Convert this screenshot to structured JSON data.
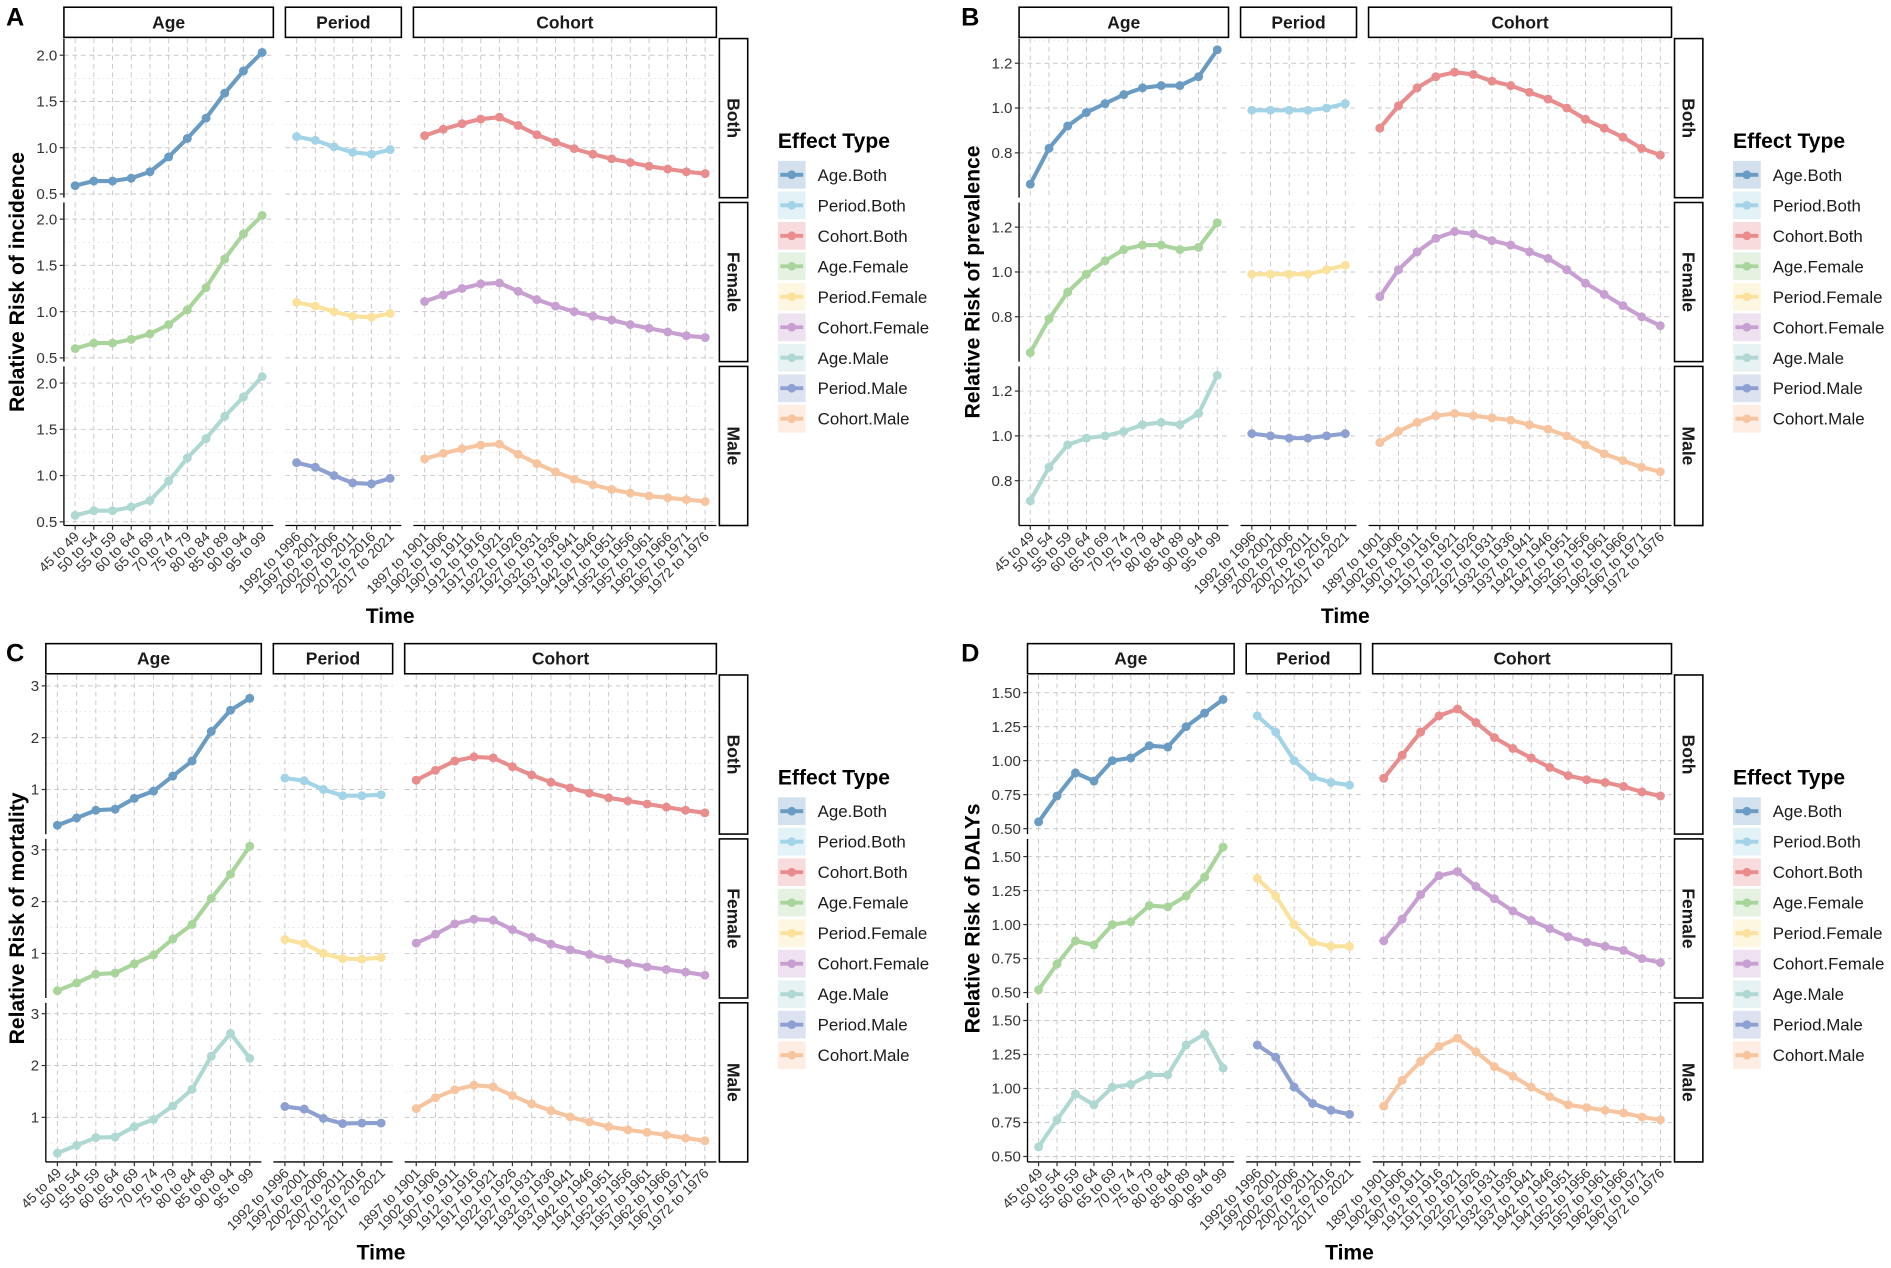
{
  "palette": {
    "Age.Both": "#6a9bc3",
    "Period.Both": "#a3d3e6",
    "Cohort.Both": "#e88c8d",
    "Age.Female": "#a9d59c",
    "Period.Female": "#fae29c",
    "Cohort.Female": "#c79fd1",
    "Age.Male": "#afd8d3",
    "Period.Male": "#8ea0d2",
    "Cohort.Male": "#f7c4a0"
  },
  "chart_data": [
    {
      "panel_label": "A",
      "type": "line",
      "xlabel": "Time",
      "ylabel": "Relative Risk of incidence",
      "columns": [
        "Age",
        "Period",
        "Cohort"
      ],
      "rows": [
        "Both",
        "Female",
        "Male"
      ],
      "legend_title": "Effect Type",
      "ylim": [
        0.46,
        2.18
      ],
      "yticks": [
        0.5,
        1.0,
        1.5,
        2.0
      ],
      "ytick_labels": [
        "0.5",
        "1.0",
        "1.5",
        "2.0"
      ],
      "categories": {
        "Age": [
          "45 to 49",
          "50 to 54",
          "55 to 59",
          "60 to 64",
          "65 to 69",
          "70 to 74",
          "75 to 79",
          "80 to 84",
          "85 to 89",
          "90 to 94",
          "95 to 99"
        ],
        "Period": [
          "1992 to 1996",
          "1997 to 2001",
          "2002 to 2006",
          "2007 to 2011",
          "2012 to 2016",
          "2017 to 2021"
        ],
        "Cohort": [
          "1897 to 1901",
          "1902 to 1906",
          "1907 to 1911",
          "1912 to 1916",
          "1917 to 1921",
          "1922 to 1926",
          "1927 to 1931",
          "1932 to 1936",
          "1937 to 1941",
          "1942 to 1946",
          "1947 to 1951",
          "1952 to 1956",
          "1957 to 1961",
          "1962 to 1966",
          "1967 to 1971",
          "1972 to 1976"
        ]
      },
      "series": [
        {
          "name": "Age.Both",
          "values": [
            0.59,
            0.64,
            0.64,
            0.67,
            0.74,
            0.9,
            1.1,
            1.32,
            1.59,
            1.83,
            2.03
          ]
        },
        {
          "name": "Period.Both",
          "values": [
            1.12,
            1.08,
            1.01,
            0.95,
            0.93,
            0.98
          ]
        },
        {
          "name": "Cohort.Both",
          "values": [
            1.13,
            1.2,
            1.26,
            1.31,
            1.33,
            1.24,
            1.14,
            1.06,
            0.99,
            0.93,
            0.88,
            0.84,
            0.8,
            0.77,
            0.74,
            0.72
          ]
        },
        {
          "name": "Age.Female",
          "values": [
            0.6,
            0.66,
            0.66,
            0.7,
            0.76,
            0.86,
            1.02,
            1.26,
            1.57,
            1.84,
            2.04
          ]
        },
        {
          "name": "Period.Female",
          "values": [
            1.1,
            1.06,
            1.0,
            0.95,
            0.94,
            0.98
          ]
        },
        {
          "name": "Cohort.Female",
          "values": [
            1.11,
            1.18,
            1.25,
            1.3,
            1.31,
            1.22,
            1.13,
            1.06,
            1.0,
            0.95,
            0.91,
            0.86,
            0.82,
            0.78,
            0.74,
            0.72
          ]
        },
        {
          "name": "Age.Male",
          "values": [
            0.57,
            0.62,
            0.62,
            0.66,
            0.73,
            0.94,
            1.19,
            1.4,
            1.64,
            1.85,
            2.07
          ]
        },
        {
          "name": "Period.Male",
          "values": [
            1.14,
            1.09,
            1.0,
            0.92,
            0.91,
            0.97
          ]
        },
        {
          "name": "Cohort.Male",
          "values": [
            1.18,
            1.24,
            1.29,
            1.33,
            1.34,
            1.23,
            1.13,
            1.04,
            0.96,
            0.9,
            0.85,
            0.81,
            0.78,
            0.76,
            0.74,
            0.72
          ]
        }
      ]
    },
    {
      "panel_label": "B",
      "type": "line",
      "xlabel": "Time",
      "ylabel": "Relative Risk of prevalence",
      "columns": [
        "Age",
        "Period",
        "Cohort"
      ],
      "rows": [
        "Both",
        "Female",
        "Male"
      ],
      "legend_title": "Effect Type",
      "ylim": [
        0.6,
        1.31
      ],
      "yticks": [
        0.8,
        1.0,
        1.2
      ],
      "ytick_labels": [
        "0.8",
        "1.0",
        "1.2"
      ],
      "categories": {
        "Age": [
          "45 to 49",
          "50 to 54",
          "55 to 59",
          "60 to 64",
          "65 to 69",
          "70 to 74",
          "75 to 79",
          "80 to 84",
          "85 to 89",
          "90 to 94",
          "95 to 99"
        ],
        "Period": [
          "1992 to 1996",
          "1997 to 2001",
          "2002 to 2006",
          "2007 to 2011",
          "2012 to 2016",
          "2017 to 2021"
        ],
        "Cohort": [
          "1897 to 1901",
          "1902 to 1906",
          "1907 to 1911",
          "1912 to 1916",
          "1917 to 1921",
          "1922 to 1926",
          "1927 to 1931",
          "1932 to 1936",
          "1937 to 1941",
          "1942 to 1946",
          "1947 to 1951",
          "1952 to 1956",
          "1957 to 1961",
          "1962 to 1966",
          "1967 to 1971",
          "1972 to 1976"
        ]
      },
      "series": [
        {
          "name": "Age.Both",
          "values": [
            0.66,
            0.82,
            0.92,
            0.98,
            1.02,
            1.06,
            1.09,
            1.1,
            1.1,
            1.14,
            1.26
          ]
        },
        {
          "name": "Period.Both",
          "values": [
            0.99,
            0.99,
            0.99,
            0.99,
            1.0,
            1.02
          ]
        },
        {
          "name": "Cohort.Both",
          "values": [
            0.91,
            1.01,
            1.09,
            1.14,
            1.16,
            1.15,
            1.12,
            1.1,
            1.07,
            1.04,
            1.0,
            0.95,
            0.91,
            0.87,
            0.82,
            0.79
          ]
        },
        {
          "name": "Age.Female",
          "values": [
            0.64,
            0.79,
            0.91,
            0.99,
            1.05,
            1.1,
            1.12,
            1.12,
            1.1,
            1.11,
            1.22
          ]
        },
        {
          "name": "Period.Female",
          "values": [
            0.99,
            0.99,
            0.99,
            0.99,
            1.01,
            1.03
          ]
        },
        {
          "name": "Cohort.Female",
          "values": [
            0.89,
            1.01,
            1.09,
            1.15,
            1.18,
            1.17,
            1.14,
            1.12,
            1.09,
            1.06,
            1.01,
            0.95,
            0.9,
            0.85,
            0.8,
            0.76
          ]
        },
        {
          "name": "Age.Male",
          "values": [
            0.71,
            0.86,
            0.96,
            0.99,
            1.0,
            1.02,
            1.05,
            1.06,
            1.05,
            1.1,
            1.27
          ]
        },
        {
          "name": "Period.Male",
          "values": [
            1.01,
            1.0,
            0.99,
            0.99,
            1.0,
            1.01
          ]
        },
        {
          "name": "Cohort.Male",
          "values": [
            0.97,
            1.02,
            1.06,
            1.09,
            1.1,
            1.09,
            1.08,
            1.07,
            1.05,
            1.03,
            1.0,
            0.96,
            0.92,
            0.89,
            0.86,
            0.84
          ]
        }
      ]
    },
    {
      "panel_label": "C",
      "type": "line",
      "xlabel": "Time",
      "ylabel": "Relative Risk of mortality",
      "columns": [
        "Age",
        "Period",
        "Cohort"
      ],
      "rows": [
        "Both",
        "Female",
        "Male"
      ],
      "legend_title": "Effect Type",
      "ylim": [
        0.14,
        3.21
      ],
      "yticks": [
        1,
        2,
        3
      ],
      "ytick_labels": [
        "1",
        "2",
        "3"
      ],
      "categories": {
        "Age": [
          "45 to 49",
          "50 to 54",
          "55 to 59",
          "60 to 64",
          "65 to 69",
          "70 to 74",
          "75 to 79",
          "80 to 84",
          "85 to 89",
          "90 to 94",
          "95 to 99"
        ],
        "Period": [
          "1992 to 1996",
          "1997 to 2001",
          "2002 to 2006",
          "2007 to 2011",
          "2012 to 2016",
          "2017 to 2021"
        ],
        "Cohort": [
          "1897 to 1901",
          "1902 to 1906",
          "1907 to 1911",
          "1912 to 1916",
          "1917 to 1921",
          "1922 to 1926",
          "1927 to 1931",
          "1932 to 1936",
          "1937 to 1941",
          "1942 to 1946",
          "1947 to 1951",
          "1952 to 1956",
          "1957 to 1961",
          "1962 to 1966",
          "1967 to 1971",
          "1972 to 1976"
        ]
      },
      "series": [
        {
          "name": "Age.Both",
          "values": [
            0.31,
            0.45,
            0.6,
            0.62,
            0.83,
            0.97,
            1.26,
            1.55,
            2.12,
            2.53,
            2.76
          ]
        },
        {
          "name": "Period.Both",
          "values": [
            1.22,
            1.17,
            1.0,
            0.88,
            0.88,
            0.9
          ]
        },
        {
          "name": "Cohort.Both",
          "values": [
            1.18,
            1.37,
            1.55,
            1.63,
            1.61,
            1.44,
            1.28,
            1.14,
            1.03,
            0.93,
            0.84,
            0.78,
            0.72,
            0.66,
            0.6,
            0.55
          ]
        },
        {
          "name": "Age.Female",
          "values": [
            0.28,
            0.43,
            0.6,
            0.62,
            0.8,
            0.97,
            1.28,
            1.56,
            2.06,
            2.53,
            3.07
          ]
        },
        {
          "name": "Period.Female",
          "values": [
            1.27,
            1.19,
            1.0,
            0.9,
            0.89,
            0.92
          ]
        },
        {
          "name": "Cohort.Female",
          "values": [
            1.2,
            1.37,
            1.57,
            1.66,
            1.64,
            1.46,
            1.31,
            1.18,
            1.07,
            0.98,
            0.89,
            0.81,
            0.74,
            0.69,
            0.64,
            0.58
          ]
        },
        {
          "name": "Age.Male",
          "values": [
            0.31,
            0.46,
            0.61,
            0.62,
            0.82,
            0.96,
            1.22,
            1.54,
            2.18,
            2.62,
            2.14
          ]
        },
        {
          "name": "Period.Male",
          "values": [
            1.21,
            1.16,
            0.98,
            0.88,
            0.89,
            0.89
          ]
        },
        {
          "name": "Cohort.Male",
          "values": [
            1.17,
            1.38,
            1.53,
            1.62,
            1.59,
            1.42,
            1.26,
            1.13,
            1.01,
            0.91,
            0.82,
            0.76,
            0.71,
            0.66,
            0.6,
            0.55
          ]
        }
      ]
    },
    {
      "panel_label": "D",
      "type": "line",
      "xlabel": "Time",
      "ylabel": "Relative Risk of DALYs",
      "columns": [
        "Age",
        "Period",
        "Cohort"
      ],
      "rows": [
        "Both",
        "Female",
        "Male"
      ],
      "legend_title": "Effect Type",
      "ylim": [
        0.46,
        1.63
      ],
      "yticks": [
        0.5,
        0.75,
        1.0,
        1.25,
        1.5
      ],
      "ytick_labels": [
        "0.50",
        "0.75",
        "1.00",
        "1.25",
        "1.50"
      ],
      "categories": {
        "Age": [
          "45 to 49",
          "50 to 54",
          "55 to 59",
          "60 to 64",
          "65 to 69",
          "70 to 74",
          "75 to 79",
          "80 to 84",
          "85 to 89",
          "90 to 94",
          "95 to 99"
        ],
        "Period": [
          "1992 to 1996",
          "1997 to 2001",
          "2002 to 2006",
          "2007 to 2011",
          "2012 to 2016",
          "2017 to 2021"
        ],
        "Cohort": [
          "1897 to 1901",
          "1902 to 1906",
          "1907 to 1911",
          "1912 to 1916",
          "1917 to 1921",
          "1922 to 1926",
          "1927 to 1931",
          "1932 to 1936",
          "1937 to 1941",
          "1942 to 1946",
          "1947 to 1951",
          "1952 to 1956",
          "1957 to 1961",
          "1962 to 1966",
          "1967 to 1971",
          "1972 to 1976"
        ]
      },
      "series": [
        {
          "name": "Age.Both",
          "values": [
            0.55,
            0.74,
            0.91,
            0.85,
            1.0,
            1.02,
            1.11,
            1.1,
            1.25,
            1.35,
            1.45
          ]
        },
        {
          "name": "Period.Both",
          "values": [
            1.33,
            1.21,
            1.0,
            0.88,
            0.84,
            0.82
          ]
        },
        {
          "name": "Cohort.Both",
          "values": [
            0.87,
            1.04,
            1.21,
            1.33,
            1.38,
            1.28,
            1.17,
            1.09,
            1.02,
            0.95,
            0.89,
            0.86,
            0.84,
            0.81,
            0.77,
            0.74
          ]
        },
        {
          "name": "Age.Female",
          "values": [
            0.52,
            0.71,
            0.88,
            0.85,
            1.0,
            1.02,
            1.14,
            1.13,
            1.21,
            1.35,
            1.57
          ]
        },
        {
          "name": "Period.Female",
          "values": [
            1.34,
            1.21,
            1.0,
            0.87,
            0.84,
            0.84
          ]
        },
        {
          "name": "Cohort.Female",
          "values": [
            0.88,
            1.04,
            1.22,
            1.36,
            1.39,
            1.28,
            1.19,
            1.1,
            1.03,
            0.97,
            0.91,
            0.87,
            0.84,
            0.81,
            0.75,
            0.72
          ]
        },
        {
          "name": "Age.Male",
          "values": [
            0.57,
            0.77,
            0.96,
            0.88,
            1.01,
            1.03,
            1.1,
            1.1,
            1.32,
            1.4,
            1.15
          ]
        },
        {
          "name": "Period.Male",
          "values": [
            1.32,
            1.23,
            1.01,
            0.89,
            0.84,
            0.81
          ]
        },
        {
          "name": "Cohort.Male",
          "values": [
            0.87,
            1.06,
            1.2,
            1.31,
            1.37,
            1.27,
            1.16,
            1.09,
            1.01,
            0.94,
            0.88,
            0.86,
            0.84,
            0.82,
            0.79,
            0.77
          ]
        }
      ]
    }
  ]
}
